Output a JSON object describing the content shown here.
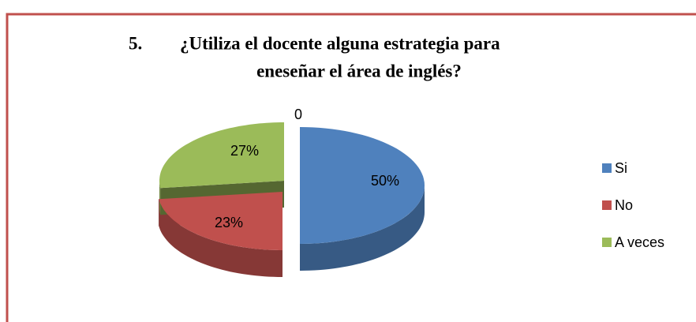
{
  "chart_data": {
    "type": "pie",
    "title_number": "5.",
    "title_lines": [
      "¿Utiliza el docente alguna estrategia para",
      "eneseñar el área de inglés?"
    ],
    "categories": [
      "Si",
      "No",
      "A veces"
    ],
    "values": [
      50,
      23,
      27
    ],
    "value_labels": [
      "50%",
      "23%",
      "27%"
    ],
    "colors": [
      "#4f81bd",
      "#c0504d",
      "#9bbb59"
    ],
    "annotations": [
      "0"
    ],
    "legend": "right"
  }
}
